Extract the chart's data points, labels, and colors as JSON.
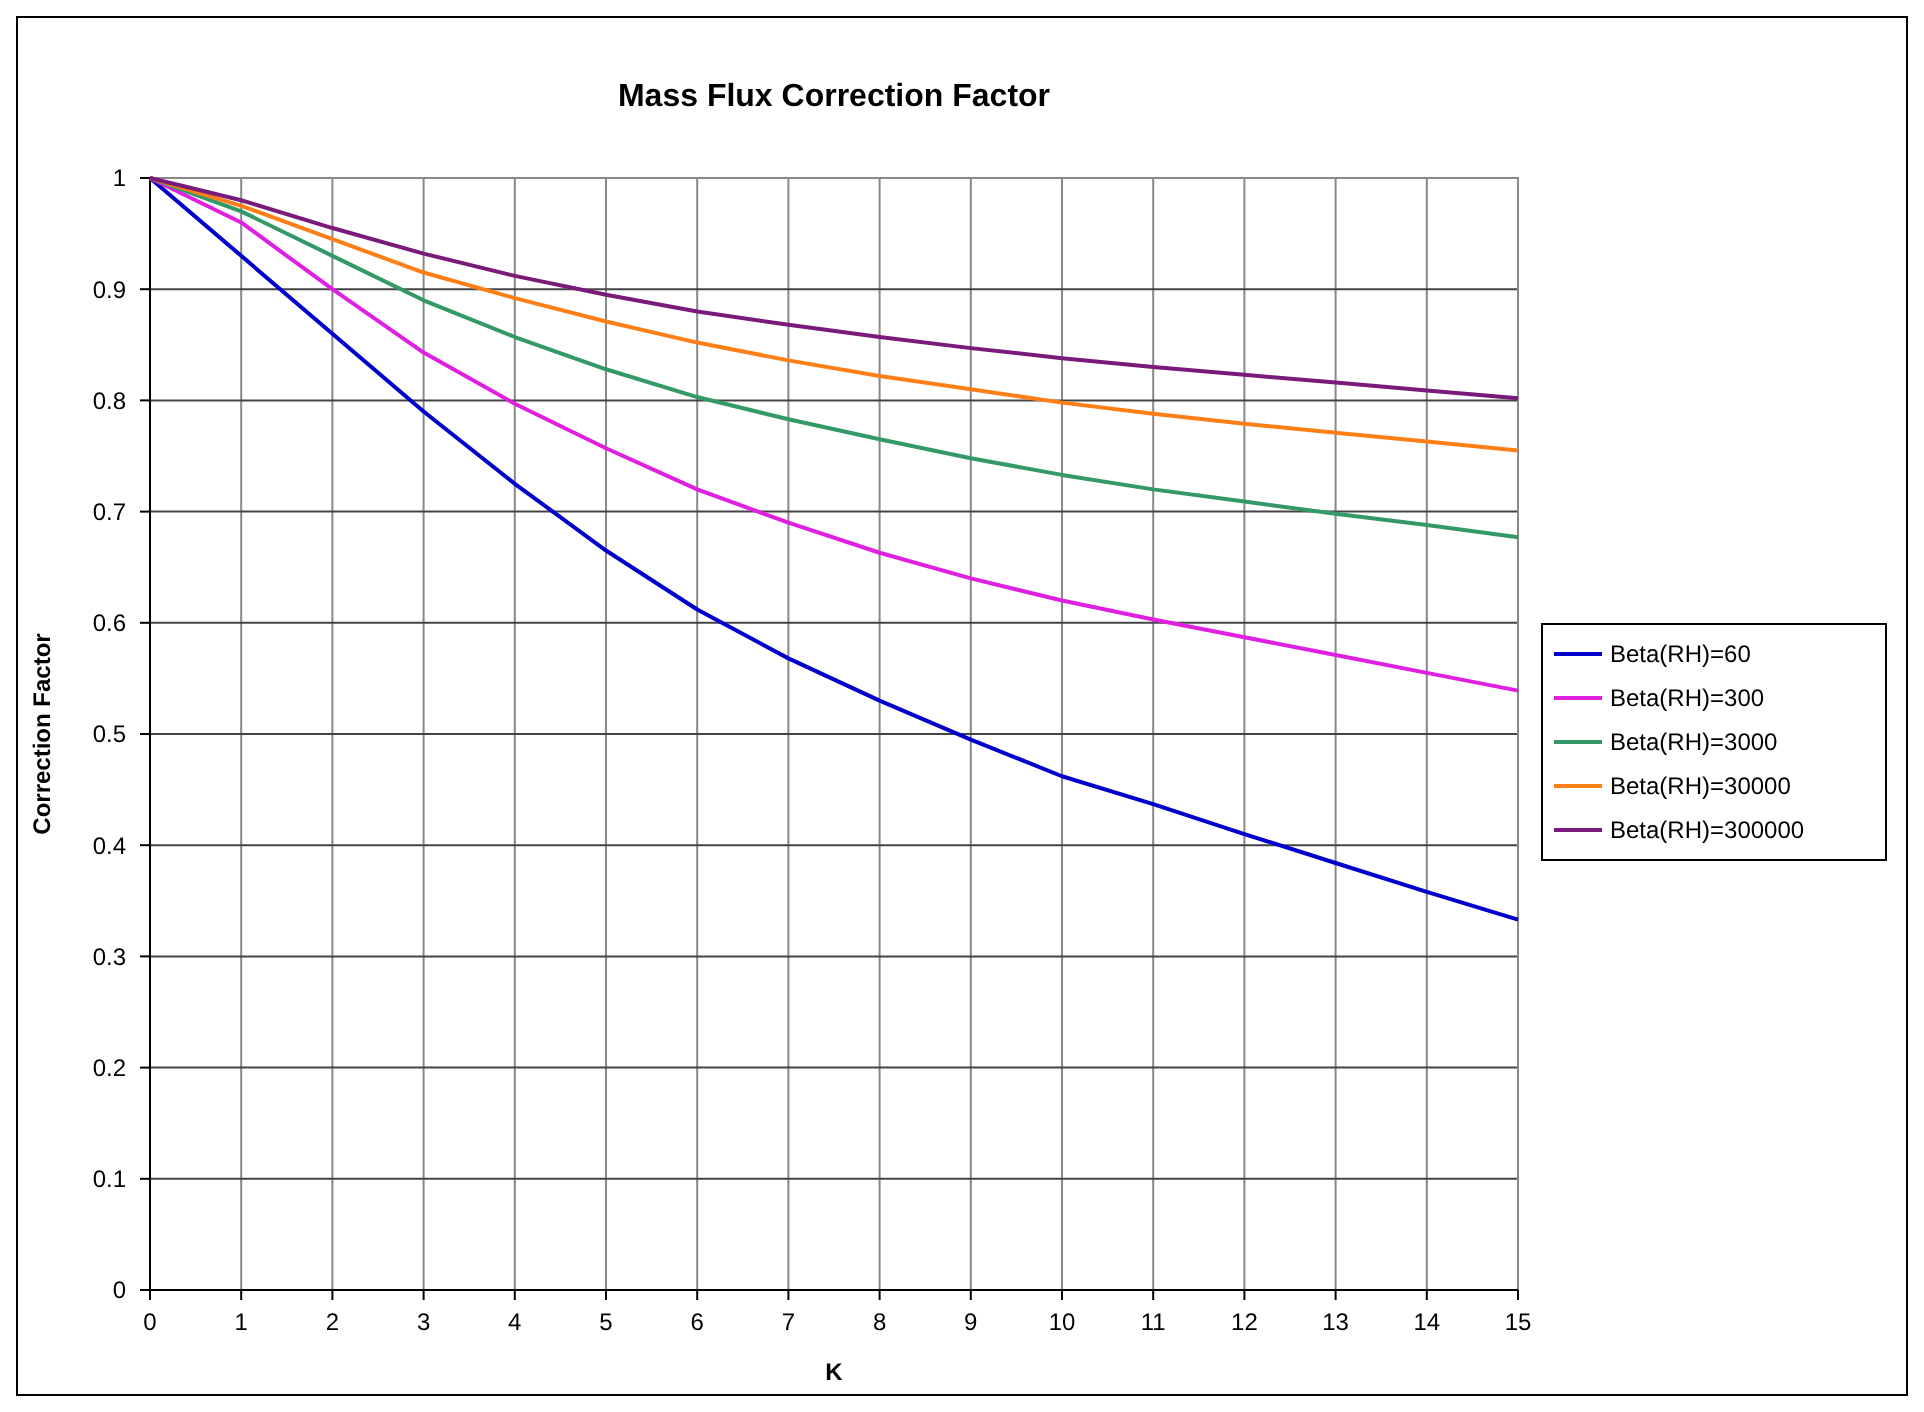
{
  "chart_data": {
    "type": "line",
    "title": "Mass Flux Correction Factor",
    "xlabel": "K",
    "ylabel": "Correction Factor",
    "x": [
      0,
      1,
      2,
      3,
      4,
      5,
      6,
      7,
      8,
      9,
      10,
      11,
      12,
      13,
      14,
      15
    ],
    "xlim": [
      0,
      15
    ],
    "xticks": [
      0,
      1,
      2,
      3,
      4,
      5,
      6,
      7,
      8,
      9,
      10,
      11,
      12,
      13,
      14,
      15
    ],
    "ylim": [
      0,
      1
    ],
    "yticks": [
      0,
      0.1,
      0.2,
      0.3,
      0.4,
      0.5,
      0.6,
      0.7,
      0.8,
      0.9,
      1
    ],
    "grid": true,
    "legend": "right",
    "marker": "none",
    "line_style": "solid",
    "series": [
      {
        "name": "Beta(RH)=60",
        "color": "#0000cc",
        "values": [
          1,
          0.93,
          0.86,
          0.79,
          0.725,
          0.665,
          0.612,
          0.568,
          0.53,
          0.495,
          0.462,
          0.437,
          0.41,
          0.384,
          0.358,
          0.333
        ]
      },
      {
        "name": "Beta(RH)=300",
        "color": "#e020e0",
        "values": [
          1,
          0.96,
          0.9,
          0.843,
          0.797,
          0.757,
          0.72,
          0.69,
          0.663,
          0.64,
          0.62,
          0.603,
          0.587,
          0.571,
          0.555,
          0.539
        ]
      },
      {
        "name": "Beta(RH)=3000",
        "color": "#339966",
        "values": [
          1,
          0.97,
          0.93,
          0.89,
          0.857,
          0.828,
          0.803,
          0.783,
          0.765,
          0.748,
          0.733,
          0.72,
          0.709,
          0.698,
          0.688,
          0.677
        ]
      },
      {
        "name": "Beta(RH)=30000",
        "color": "#ff7f17",
        "values": [
          1,
          0.975,
          0.945,
          0.915,
          0.892,
          0.871,
          0.852,
          0.836,
          0.822,
          0.81,
          0.798,
          0.788,
          0.779,
          0.771,
          0.763,
          0.755
        ]
      },
      {
        "name": "Beta(RH)=300000",
        "color": "#7a1a7a",
        "values": [
          1,
          0.98,
          0.955,
          0.932,
          0.912,
          0.895,
          0.88,
          0.868,
          0.857,
          0.847,
          0.838,
          0.83,
          0.823,
          0.816,
          0.809,
          0.802
        ]
      }
    ]
  }
}
